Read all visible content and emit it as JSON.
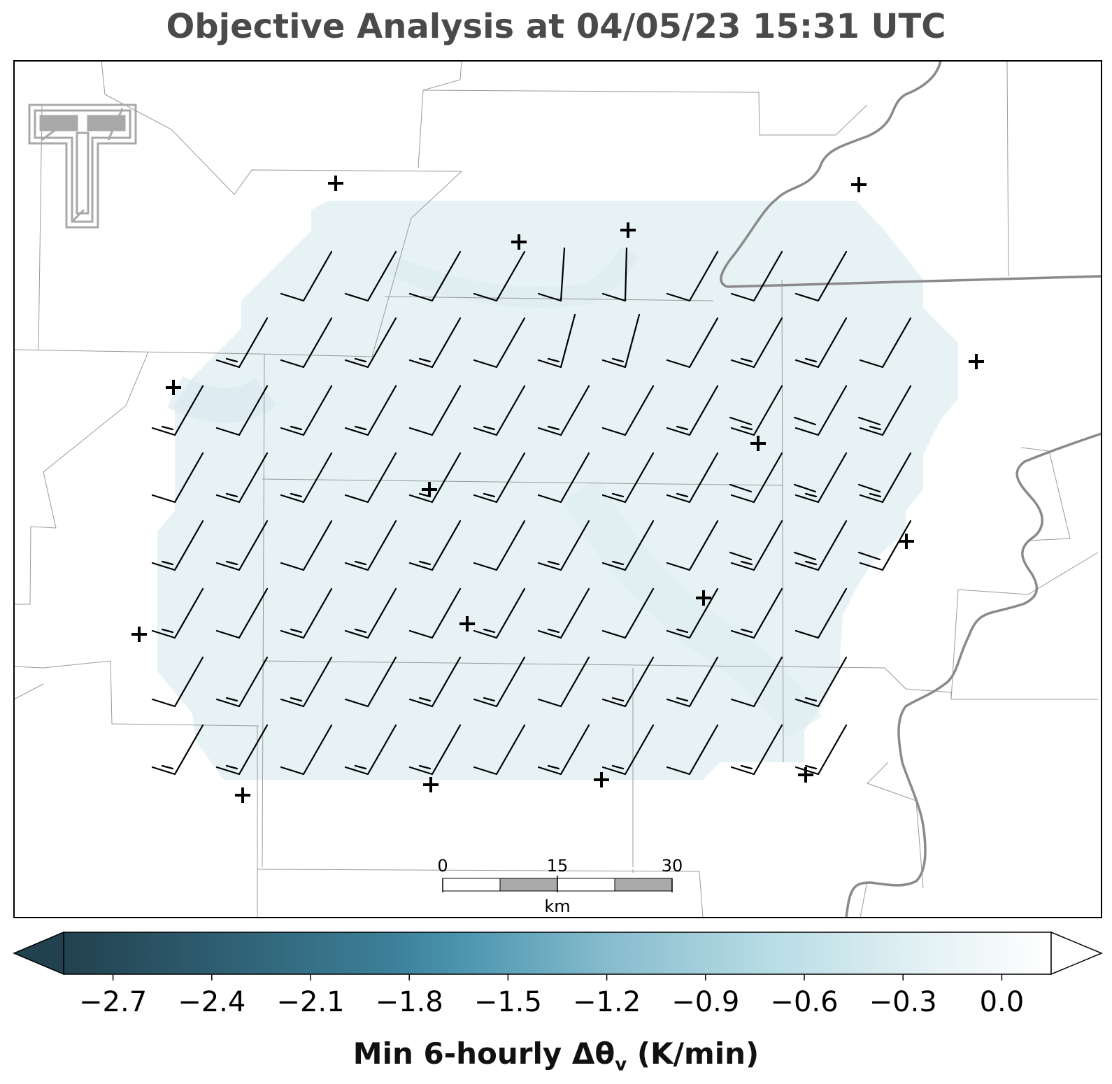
{
  "title": "Objective Analysis at 04/05/23 15:31 UTC",
  "colorbar": {
    "label_main": "Min 6-hourly Δθ",
    "label_sub": "v",
    "label_unit": " (K/min)",
    "min": -2.85,
    "max": 0.15,
    "ticks": [
      "−2.7",
      "−2.4",
      "−2.1",
      "−1.8",
      "−1.5",
      "−1.2",
      "−0.9",
      "−0.6",
      "−0.3",
      "0.0"
    ],
    "tick_values": [
      -2.7,
      -2.4,
      -2.1,
      -1.8,
      -1.5,
      -1.2,
      -0.9,
      -0.6,
      -0.3,
      0.0
    ],
    "colors": [
      "#22414f",
      "#3c7f98",
      "#4a94ae",
      "#86bccd",
      "#b9dde6",
      "#e6f2f5",
      "#ffffff"
    ],
    "extend": "both"
  },
  "scale_bar": {
    "labels": [
      "0",
      "15",
      "30"
    ],
    "unit": "km"
  },
  "analysis_fill_color": "#e7f2f5",
  "logo": {
    "name": "texas-tech-double-t-logo",
    "color": "#a8a8a8"
  }
}
